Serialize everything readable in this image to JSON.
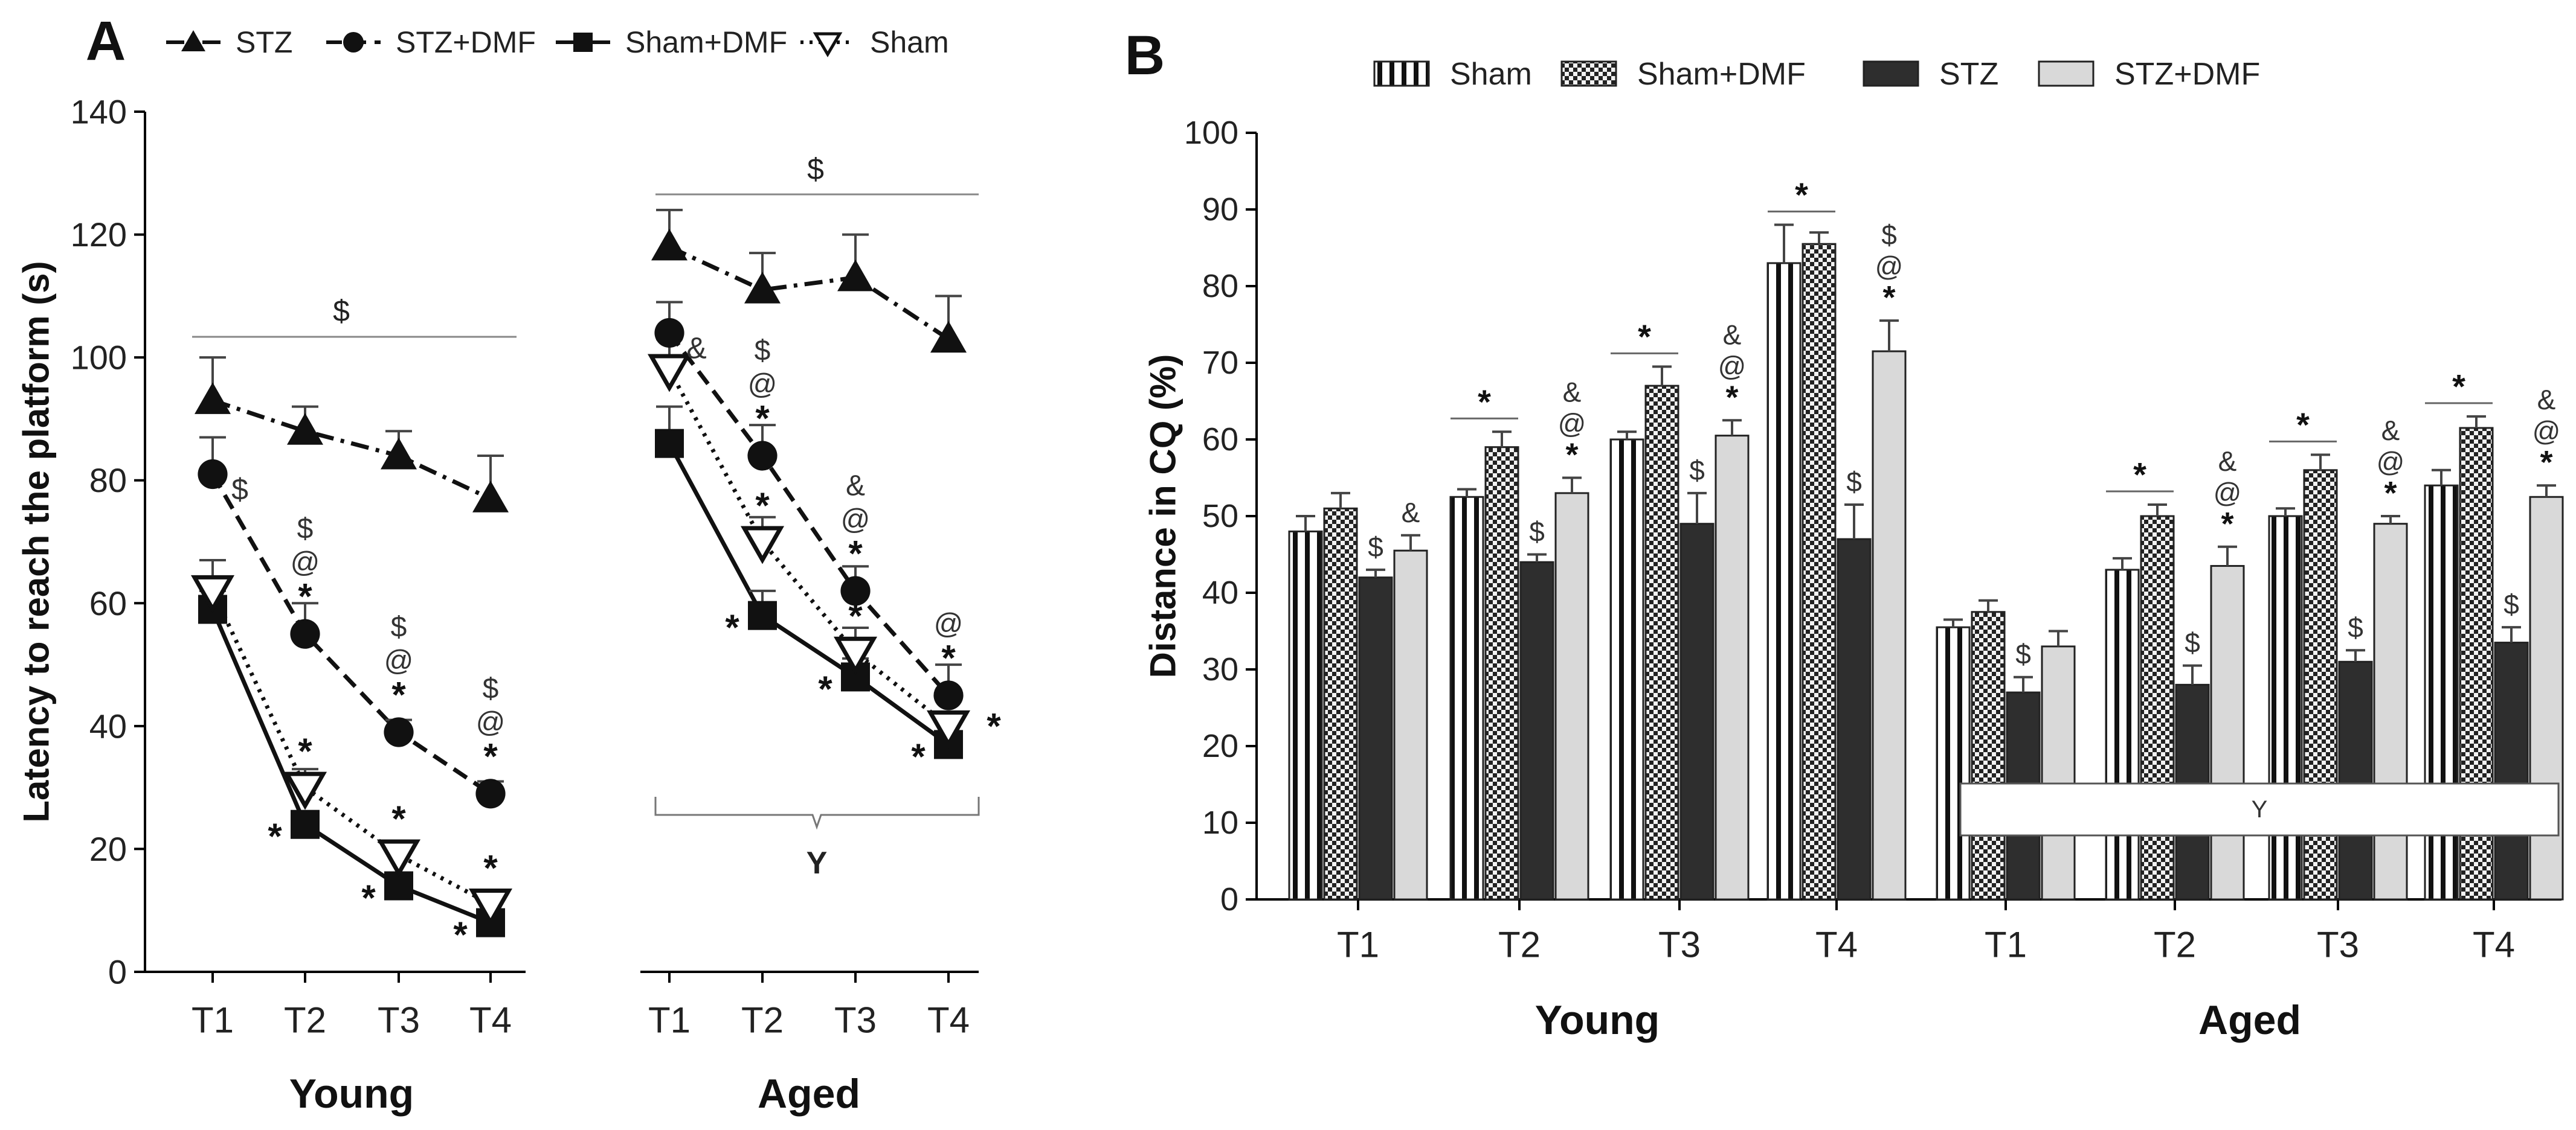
{
  "colors": {
    "axis": "#000000",
    "text": "#222222",
    "bracket": "#777777",
    "sham_fill": "#ffffff",
    "sham_dmf_fill": "#e8e8e8",
    "stz_fill": "#2e2e2e",
    "stz_dmf_fill": "#d9d9d9",
    "error": "#444444"
  },
  "chart_data": [
    {
      "panel": "A",
      "type": "line",
      "ylabel": "Latency to reach the platform (s)",
      "ylim": [
        0,
        140
      ],
      "yticks": [
        0,
        20,
        40,
        60,
        80,
        100,
        120,
        140
      ],
      "categories": [
        "T1",
        "T2",
        "T3",
        "T4"
      ],
      "groups": [
        "Young",
        "Aged"
      ],
      "legend": [
        "STZ",
        "STZ+DMF",
        "Sham+DMF",
        "Sham"
      ],
      "series": [
        {
          "name": "STZ",
          "marker": "triangle",
          "style": "dashdot",
          "young": [
            93,
            88,
            84,
            77
          ],
          "aged": [
            118,
            111,
            113,
            103
          ],
          "err_young": [
            7,
            4,
            4,
            7
          ],
          "err_aged": [
            6,
            6,
            7,
            7
          ]
        },
        {
          "name": "STZ+DMF",
          "marker": "circle",
          "style": "dashed",
          "young": [
            81,
            55,
            39,
            29
          ],
          "aged": [
            104,
            84,
            62,
            45
          ],
          "err_young": [
            6,
            5,
            2,
            2
          ],
          "err_aged": [
            5,
            5,
            4,
            5
          ]
        },
        {
          "name": "Sham+DMF",
          "marker": "square",
          "style": "solid",
          "young": [
            59,
            24,
            14,
            8
          ],
          "aged": [
            86,
            58,
            48,
            37
          ],
          "err_young": [
            3,
            2,
            2,
            1
          ],
          "err_aged": [
            6,
            4,
            3,
            2
          ]
        },
        {
          "name": "Sham",
          "marker": "open-triangle-down",
          "style": "dotted",
          "young": [
            62,
            30,
            19,
            11
          ],
          "aged": [
            98,
            70,
            52,
            40
          ],
          "err_young": [
            5,
            3,
            2,
            2
          ],
          "err_aged": [
            5,
            4,
            4,
            2
          ]
        }
      ],
      "annotations": {
        "bracket_dollar": "$",
        "group_y": "Y",
        "young": [
          {
            "series": "STZ+DMF",
            "t": 0,
            "labels": [
              "$"
            ]
          },
          {
            "series": "STZ+DMF",
            "t": 1,
            "labels": [
              "$",
              "@",
              "*"
            ]
          },
          {
            "series": "STZ+DMF",
            "t": 2,
            "labels": [
              "$",
              "@",
              "*"
            ]
          },
          {
            "series": "STZ+DMF",
            "t": 3,
            "labels": [
              "$",
              "@",
              "*"
            ]
          },
          {
            "series": "Sham",
            "t": 1,
            "labels": [
              "*"
            ]
          },
          {
            "series": "Sham",
            "t": 2,
            "labels": [
              "*"
            ]
          },
          {
            "series": "Sham",
            "t": 3,
            "labels": [
              "*"
            ]
          },
          {
            "series": "Sham+DMF",
            "t": 1,
            "labels": [
              "*"
            ]
          },
          {
            "series": "Sham+DMF",
            "t": 2,
            "labels": [
              "*"
            ]
          },
          {
            "series": "Sham+DMF",
            "t": 3,
            "labels": [
              "*"
            ]
          }
        ],
        "aged": [
          {
            "series": "STZ+DMF",
            "t": 0,
            "labels": [
              "&"
            ]
          },
          {
            "series": "STZ+DMF",
            "t": 1,
            "labels": [
              "$",
              "@",
              "*"
            ]
          },
          {
            "series": "STZ+DMF",
            "t": 2,
            "labels": [
              "&",
              "@",
              "*"
            ]
          },
          {
            "series": "STZ+DMF",
            "t": 3,
            "labels": [
              "@",
              "*"
            ]
          },
          {
            "series": "Sham",
            "t": 1,
            "labels": [
              "*"
            ]
          },
          {
            "series": "Sham",
            "t": 2,
            "labels": [
              "*"
            ]
          },
          {
            "series": "Sham",
            "t": 3,
            "labels": [
              "*"
            ]
          },
          {
            "series": "Sham+DMF",
            "t": 1,
            "labels": [
              "*"
            ]
          },
          {
            "series": "Sham+DMF",
            "t": 2,
            "labels": [
              "*"
            ]
          },
          {
            "series": "Sham+DMF",
            "t": 3,
            "labels": [
              "*"
            ]
          }
        ]
      }
    },
    {
      "panel": "B",
      "type": "bar",
      "ylabel": "Distance in CQ (%)",
      "ylim": [
        0,
        100
      ],
      "yticks": [
        0,
        10,
        20,
        30,
        40,
        50,
        60,
        70,
        80,
        90,
        100
      ],
      "categories": [
        "T1",
        "T2",
        "T3",
        "T4"
      ],
      "groups": [
        "Young",
        "Aged"
      ],
      "legend": [
        "Sham",
        "Sham+DMF",
        "STZ",
        "STZ+DMF"
      ],
      "series": [
        {
          "name": "Sham",
          "pattern": "vstripe",
          "young": [
            48,
            52.5,
            60,
            83
          ],
          "aged": [
            35.5,
            43,
            50,
            54
          ],
          "err_young": [
            2,
            1,
            1,
            5
          ],
          "err_aged": [
            1,
            1.5,
            1,
            2
          ]
        },
        {
          "name": "Sham+DMF",
          "pattern": "checker",
          "young": [
            51,
            59,
            67,
            85.5
          ],
          "aged": [
            37.5,
            50,
            56,
            61.5
          ],
          "err_young": [
            2,
            2,
            2.5,
            1.5
          ],
          "err_aged": [
            1.5,
            1.5,
            2,
            1.5
          ]
        },
        {
          "name": "STZ",
          "pattern": "dark",
          "young": [
            42,
            44,
            49,
            47
          ],
          "aged": [
            27,
            28,
            31,
            33.5
          ],
          "err_young": [
            1,
            1,
            4,
            4.5
          ],
          "err_aged": [
            2,
            2.5,
            1.5,
            2
          ]
        },
        {
          "name": "STZ+DMF",
          "pattern": "light",
          "young": [
            45.5,
            53,
            60.5,
            71.5
          ],
          "aged": [
            33,
            43.5,
            49,
            52.5
          ],
          "err_young": [
            2,
            2,
            2,
            4
          ],
          "err_aged": [
            2,
            2.5,
            1,
            1.5
          ]
        }
      ],
      "annotations": {
        "young": [
          {
            "series": "STZ",
            "t": 0,
            "labels": [
              "$"
            ]
          },
          {
            "series": "STZ+DMF",
            "t": 0,
            "labels": [
              "&"
            ]
          },
          {
            "series": "STZ",
            "t": 1,
            "labels": [
              "$"
            ]
          },
          {
            "series": "STZ+DMF",
            "t": 1,
            "labels": [
              "&",
              "@",
              "*"
            ]
          },
          {
            "series": "STZ",
            "t": 2,
            "labels": [
              "$"
            ]
          },
          {
            "series": "STZ+DMF",
            "t": 2,
            "labels": [
              "&",
              "@",
              "*"
            ]
          },
          {
            "series": "STZ",
            "t": 3,
            "labels": [
              "$"
            ]
          },
          {
            "series": "STZ+DMF",
            "t": 3,
            "labels": [
              "$",
              "@",
              "*"
            ]
          }
        ],
        "aged": [
          {
            "series": "STZ",
            "t": 0,
            "labels": [
              "$"
            ]
          },
          {
            "series": "STZ",
            "t": 1,
            "labels": [
              "$"
            ]
          },
          {
            "series": "STZ+DMF",
            "t": 1,
            "labels": [
              "&",
              "@",
              "*"
            ]
          },
          {
            "series": "STZ",
            "t": 2,
            "labels": [
              "$"
            ]
          },
          {
            "series": "STZ+DMF",
            "t": 2,
            "labels": [
              "&",
              "@",
              "*"
            ]
          },
          {
            "series": "STZ",
            "t": 3,
            "labels": [
              "$"
            ]
          },
          {
            "series": "STZ+DMF",
            "t": 3,
            "labels": [
              "&",
              "@",
              "*"
            ]
          }
        ],
        "sham_bracket_star": "*",
        "group_y": "Y"
      }
    }
  ]
}
